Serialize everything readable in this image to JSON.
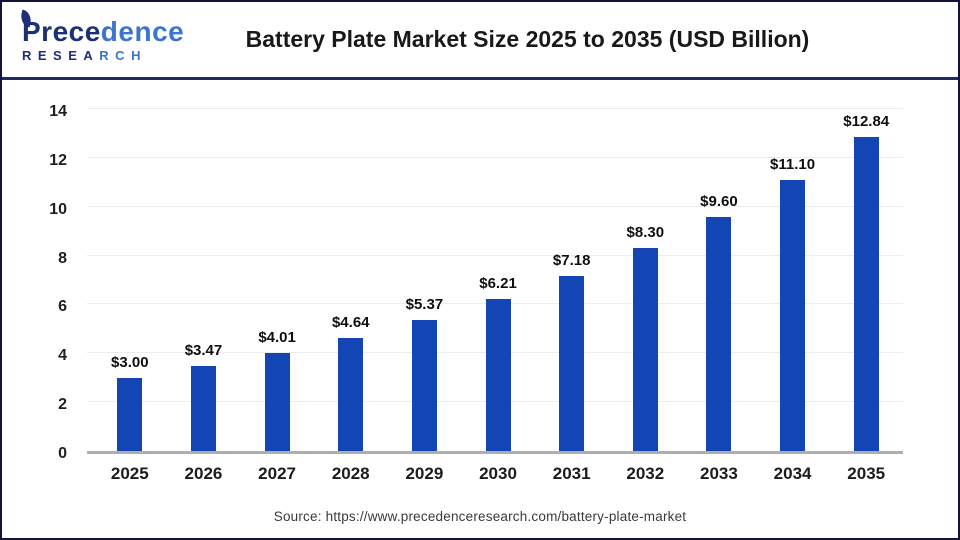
{
  "header": {
    "logo": {
      "name_part1": "Prece",
      "name_part2": "dence",
      "sub_part1": "RESEA",
      "sub_part2": "RCH"
    },
    "title": "Battery Plate Market Size 2025 to 2035 (USD Billion)"
  },
  "chart_data": {
    "type": "bar",
    "title": "Battery Plate Market Size 2025 to 2035 (USD Billion)",
    "categories": [
      "2025",
      "2026",
      "2027",
      "2028",
      "2029",
      "2030",
      "2031",
      "2032",
      "2033",
      "2034",
      "2035"
    ],
    "values": [
      3.0,
      3.47,
      4.01,
      4.64,
      5.37,
      6.21,
      7.18,
      8.3,
      9.6,
      11.1,
      12.84
    ],
    "value_labels": [
      "$3.00",
      "$3.47",
      "$4.01",
      "$4.64",
      "$5.37",
      "$6.21",
      "$7.18",
      "$8.30",
      "$9.60",
      "$11.10",
      "$12.84"
    ],
    "unit": "USD Billion",
    "xlabel": "",
    "ylabel": "",
    "ylim": [
      0,
      14
    ],
    "yticks": [
      0,
      2,
      4,
      6,
      8,
      10,
      12,
      14
    ],
    "grid": "horizontal",
    "legend": "none",
    "bar_color": "#1346b4",
    "gridline_color": "#ececec",
    "baseline_color": "#aeaeae"
  },
  "footer": {
    "source": "Source: https://www.precedenceresearch.com/battery-plate-market"
  }
}
